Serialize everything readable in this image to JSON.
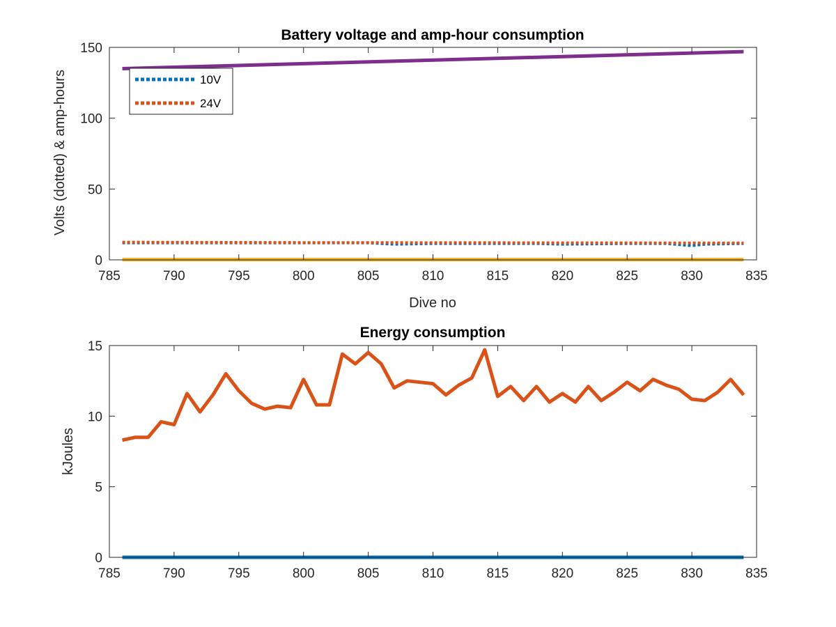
{
  "chart_data": [
    {
      "type": "line",
      "title": "Battery voltage and amp-hour consumption",
      "xlabel": "Dive no",
      "ylabel": "Volts (dotted) & amp-hours",
      "xlim": [
        785,
        835
      ],
      "ylim": [
        0,
        150
      ],
      "xticks": [
        785,
        790,
        795,
        800,
        805,
        810,
        815,
        820,
        825,
        830,
        835
      ],
      "yticks": [
        0,
        50,
        100,
        150
      ],
      "grid": false,
      "legend": {
        "location": "top-left",
        "entries": [
          "10V",
          "24V"
        ]
      },
      "series": [
        {
          "name": "10V",
          "color": "#0072bd",
          "style": "dotted",
          "x": [
            786,
            795,
            800,
            805,
            807,
            810,
            815,
            818,
            820,
            825,
            828,
            830,
            831,
            834
          ],
          "y": [
            12,
            12,
            12,
            12,
            11,
            11.5,
            11.5,
            11.5,
            11,
            11.5,
            11.5,
            10,
            11,
            11.5
          ]
        },
        {
          "name": "24V",
          "color": "#d95319",
          "style": "dotted",
          "x": [
            786,
            795,
            800,
            805,
            810,
            815,
            820,
            825,
            830,
            834
          ],
          "y": [
            12.5,
            12.3,
            12.2,
            12.2,
            12.1,
            12.1,
            12,
            12,
            11.9,
            11.9
          ]
        },
        {
          "color": "#7e2f8e",
          "style": "solid",
          "x": [
            786,
            834
          ],
          "y": [
            135,
            147
          ]
        },
        {
          "color": "#edb120",
          "style": "solid",
          "x": [
            786,
            834
          ],
          "y": [
            0.2,
            0.2
          ]
        }
      ]
    },
    {
      "type": "line",
      "title": "Energy consumption",
      "xlabel": "",
      "ylabel": "kJoules",
      "xlim": [
        785,
        835
      ],
      "ylim": [
        0,
        15
      ],
      "xticks": [
        785,
        790,
        795,
        800,
        805,
        810,
        815,
        820,
        825,
        830,
        835
      ],
      "yticks": [
        0,
        5,
        10,
        15
      ],
      "grid": false,
      "series": [
        {
          "color": "#d95319",
          "style": "solid",
          "x": [
            786,
            787,
            788,
            789,
            790,
            791,
            792,
            793,
            794,
            795,
            796,
            797,
            798,
            799,
            800,
            801,
            802,
            803,
            804,
            805,
            806,
            807,
            808,
            809,
            810,
            811,
            812,
            813,
            814,
            815,
            816,
            817,
            818,
            819,
            820,
            821,
            822,
            823,
            824,
            825,
            826,
            827,
            828,
            829,
            830,
            831,
            832,
            833,
            834
          ],
          "y": [
            8.3,
            8.5,
            8.5,
            9.6,
            9.4,
            11.6,
            10.3,
            11.5,
            13.0,
            11.8,
            10.9,
            10.5,
            10.7,
            10.6,
            12.6,
            10.8,
            10.8,
            14.4,
            13.7,
            14.5,
            13.7,
            12.0,
            12.5,
            12.4,
            12.3,
            11.5,
            12.2,
            12.7,
            14.7,
            11.4,
            12.1,
            11.1,
            12.1,
            11.0,
            11.6,
            11.0,
            12.1,
            11.1,
            11.7,
            12.4,
            11.8,
            12.6,
            12.2,
            11.9,
            11.2,
            11.1,
            11.7,
            12.6,
            11.5
          ]
        },
        {
          "color": "#0072bd",
          "style": "solid",
          "x": [
            786,
            834
          ],
          "y": [
            0,
            0
          ]
        }
      ]
    }
  ]
}
